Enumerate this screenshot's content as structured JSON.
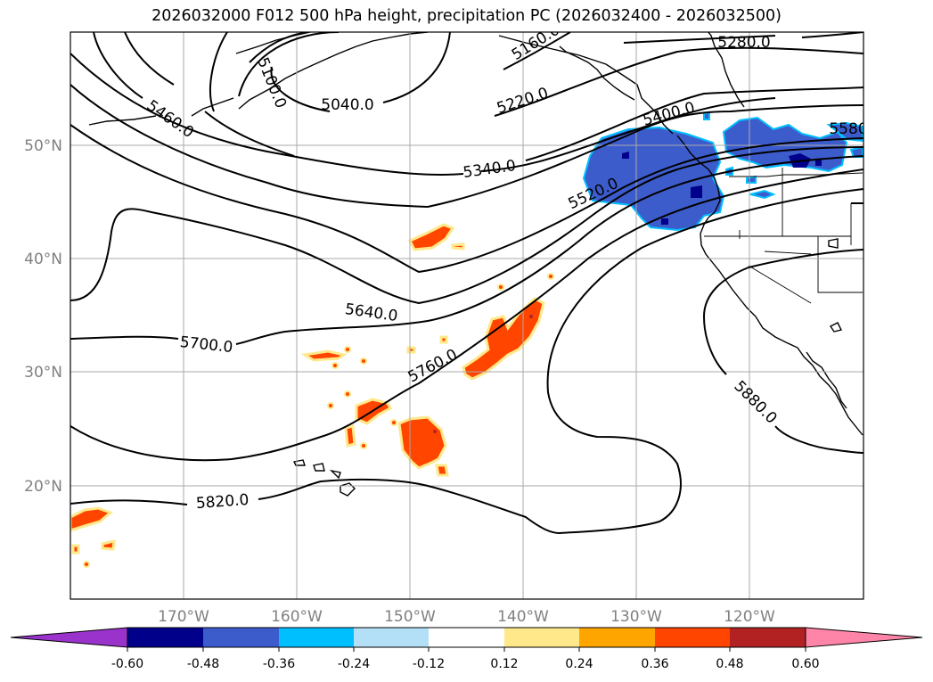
{
  "title": "2026032000 F012 500 hPa height, precipitation PC (2026032400 - 2026032500)",
  "lat_labels": [
    "50°N",
    "40°N",
    "30°N",
    "20°N"
  ],
  "lon_labels": [
    "170°W",
    "160°W",
    "150°W",
    "140°W",
    "130°W",
    "120°W"
  ],
  "contour_labels": [
    "5100.0",
    "5160.0",
    "5280.0",
    "5040.0",
    "5460.0",
    "5220.0",
    "5400.0",
    "5580",
    "5340.0",
    "5520.0",
    "5640.0",
    "5700.0",
    "5760.0",
    "5880.0",
    "5820.0"
  ],
  "colorbar": {
    "colors": [
      "#9933cc",
      "#00008b",
      "#3d5ccc",
      "#00bfff",
      "#b3e0f7",
      "#ffffff",
      "#ffe88a",
      "#ffa500",
      "#ff4500",
      "#b22222",
      "#ff85a8"
    ],
    "tick_labels": [
      "-0.60",
      "-0.48",
      "-0.36",
      "-0.24",
      "-0.12",
      "0.12",
      "0.24",
      "0.36",
      "0.48",
      "0.60"
    ]
  }
}
